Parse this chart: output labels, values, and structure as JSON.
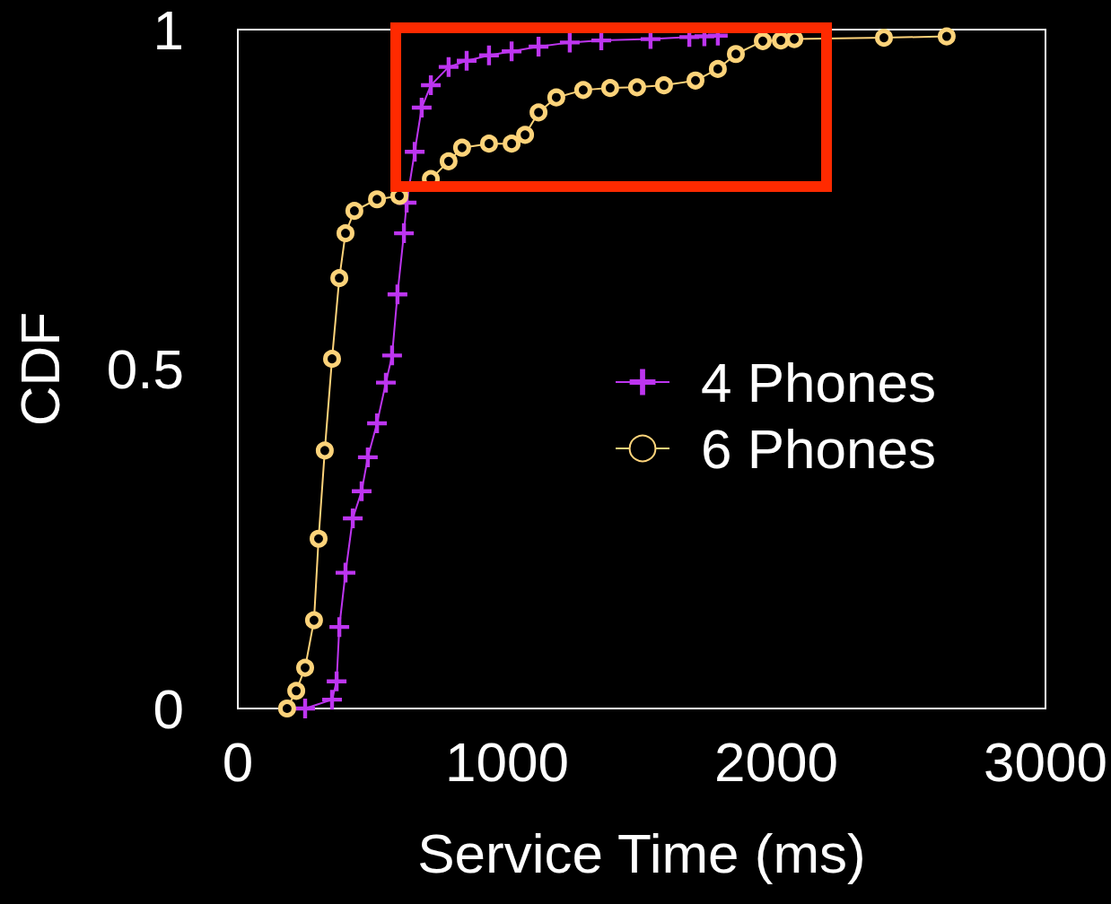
{
  "chart_data": {
    "type": "line",
    "xlabel": "Service Time (ms)",
    "ylabel": "CDF",
    "xlim": [
      0,
      3000
    ],
    "xticks": [
      0,
      1000,
      2000,
      3000
    ],
    "ylim": [
      0,
      1
    ],
    "yticks": [
      0,
      0.5,
      1
    ],
    "grid": false,
    "legend": "right",
    "line_style": "solid",
    "series": [
      {
        "name": "4 Phones",
        "color": "#bd35f0",
        "marker": "cross",
        "x": [
          250,
          350,
          367,
          377,
          400,
          427,
          460,
          483,
          517,
          550,
          573,
          593,
          617,
          627,
          657,
          683,
          717,
          783,
          850,
          933,
          1017,
          1117,
          1233,
          1350,
          1533,
          1677,
          1733,
          1783
        ],
        "values": [
          0,
          0.013,
          0.04,
          0.12,
          0.2,
          0.28,
          0.32,
          0.37,
          0.42,
          0.48,
          0.52,
          0.61,
          0.7,
          0.745,
          0.82,
          0.885,
          0.918,
          0.945,
          0.954,
          0.962,
          0.968,
          0.975,
          0.981,
          0.984,
          0.986,
          0.989,
          0.99,
          0.991
        ]
      },
      {
        "name": "6 Phones",
        "color": "#fdd37a",
        "marker": "circle",
        "x": [
          183,
          217,
          250,
          283,
          300,
          323,
          350,
          377,
          400,
          433,
          517,
          600,
          717,
          783,
          833,
          933,
          1017,
          1067,
          1117,
          1183,
          1283,
          1383,
          1483,
          1583,
          1700,
          1783,
          1850,
          1950,
          2017,
          2067,
          2400,
          2633
        ],
        "values": [
          0,
          0.026,
          0.06,
          0.13,
          0.25,
          0.38,
          0.515,
          0.634,
          0.7,
          0.733,
          0.75,
          0.755,
          0.78,
          0.806,
          0.826,
          0.832,
          0.832,
          0.845,
          0.878,
          0.9,
          0.911,
          0.914,
          0.915,
          0.918,
          0.925,
          0.942,
          0.964,
          0.983,
          0.984,
          0.986,
          0.988,
          0.99
        ]
      }
    ]
  }
}
